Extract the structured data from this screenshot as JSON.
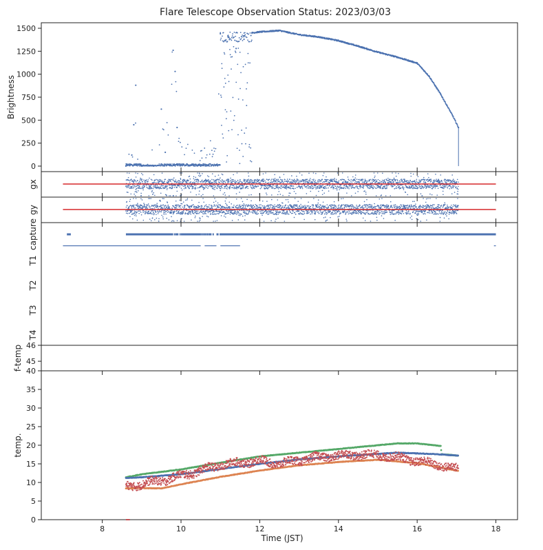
{
  "title": "Flare Telescope Observation Status: 2023/03/03",
  "colors": {
    "blue": "#4c72b0",
    "red": "#d62728",
    "green": "#55a868",
    "orange": "#dd8452",
    "darkred": "#c44e52",
    "axis": "#222222"
  },
  "chart_data": [
    {
      "type": "scatter",
      "id": "brightness",
      "ylabel": "Brightness",
      "yticks": [
        0,
        250,
        500,
        750,
        1000,
        1250,
        1500
      ],
      "ytick_labels": [
        "0",
        "250",
        "500",
        "750",
        "1000",
        "1250",
        "1500"
      ],
      "ylim": [
        -60,
        1560
      ],
      "xlim": [
        6.45,
        18.55
      ],
      "series": [
        {
          "name": "brightness",
          "points": [
            [
              8.6,
              0
            ],
            [
              8.7,
              5
            ],
            [
              8.75,
              120
            ],
            [
              8.8,
              450
            ],
            [
              8.85,
              880
            ],
            [
              8.9,
              20
            ],
            [
              9.0,
              0
            ],
            [
              9.3,
              0
            ],
            [
              9.5,
              620
            ],
            [
              9.6,
              150
            ],
            [
              9.8,
              1260
            ],
            [
              9.85,
              1030
            ],
            [
              9.9,
              420
            ],
            [
              10.0,
              20
            ],
            [
              10.5,
              0
            ],
            [
              10.9,
              10
            ],
            [
              11.0,
              1440
            ],
            [
              11.2,
              1400
            ],
            [
              11.4,
              1280
            ],
            [
              11.6,
              1380
            ],
            [
              11.8,
              1450
            ],
            [
              12.0,
              1460
            ],
            [
              12.5,
              1475
            ],
            [
              13.0,
              1430
            ],
            [
              13.5,
              1405
            ],
            [
              14.0,
              1365
            ],
            [
              14.5,
              1305
            ],
            [
              15.0,
              1240
            ],
            [
              15.5,
              1185
            ],
            [
              16.0,
              1120
            ],
            [
              16.3,
              980
            ],
            [
              16.6,
              780
            ],
            [
              16.9,
              550
            ],
            [
              17.05,
              420
            ]
          ]
        }
      ]
    },
    {
      "type": "scatter",
      "id": "gx",
      "ylabel": "gx",
      "series": [
        {
          "name": "gx",
          "x_range": [
            8.6,
            17.05
          ]
        },
        {
          "name": "gx-reference",
          "line": [
            [
              7.0,
              0
            ],
            [
              18.0,
              0
            ]
          ]
        }
      ]
    },
    {
      "type": "scatter",
      "id": "gy",
      "ylabel": "gy",
      "series": [
        {
          "name": "gy",
          "x_range": [
            8.6,
            17.05
          ]
        },
        {
          "name": "gy-reference",
          "line": [
            [
              7.0,
              0
            ],
            [
              18.0,
              0
            ]
          ]
        }
      ]
    },
    {
      "type": "scatter",
      "id": "status",
      "ylabels": [
        "capture",
        "T1",
        "T2",
        "T3",
        "T4"
      ],
      "series": [
        {
          "name": "capture",
          "segments": [
            [
              7.1,
              7.2
            ],
            [
              8.6,
              9.8
            ],
            [
              10.0,
              10.5
            ],
            [
              11.0,
              18.0
            ]
          ]
        },
        {
          "name": "T1",
          "segments": [
            [
              7.0,
              10.5
            ],
            [
              10.6,
              10.9
            ],
            [
              11.0,
              11.5
            ],
            [
              17.95,
              18.0
            ]
          ]
        }
      ]
    },
    {
      "type": "scatter",
      "id": "f-temp",
      "ylabel": "f-temp",
      "yticks": [
        45,
        46
      ],
      "ytick_labels": [
        "45",
        "46"
      ],
      "ylim": [
        44.4,
        46.0
      ],
      "series": []
    },
    {
      "type": "line",
      "id": "temperature",
      "ylabel": "temp.",
      "xlabel": "Time (JST)",
      "yticks": [
        0,
        5,
        10,
        15,
        20,
        25,
        30,
        35,
        40
      ],
      "ytick_labels": [
        "0",
        "5",
        "10",
        "15",
        "20",
        "25",
        "30",
        "35",
        "40"
      ],
      "ylim": [
        0,
        40
      ],
      "xticks": [
        8,
        10,
        12,
        14,
        16,
        18
      ],
      "xtick_labels": [
        "8",
        "10",
        "12",
        "14",
        "16",
        "18"
      ],
      "series": [
        {
          "name": "temp-green",
          "points": [
            [
              8.6,
              11.4
            ],
            [
              9.0,
              12.2
            ],
            [
              10.0,
              13.5
            ],
            [
              11.0,
              15.3
            ],
            [
              12.0,
              17.0
            ],
            [
              13.0,
              18.0
            ],
            [
              14.0,
              19.0
            ],
            [
              15.0,
              20.0
            ],
            [
              15.5,
              20.5
            ],
            [
              16.0,
              20.5
            ],
            [
              16.6,
              19.8
            ],
            [
              16.62,
              17.6
            ],
            [
              17.05,
              17.2
            ]
          ]
        },
        {
          "name": "temp-blue",
          "points": [
            [
              8.6,
              11.2
            ],
            [
              9.0,
              11.4
            ],
            [
              10.0,
              12.2
            ],
            [
              11.0,
              13.6
            ],
            [
              12.0,
              15.0
            ],
            [
              13.0,
              16.2
            ],
            [
              14.0,
              17.0
            ],
            [
              15.0,
              17.7
            ],
            [
              15.5,
              18.0
            ],
            [
              16.0,
              17.8
            ],
            [
              16.5,
              17.6
            ],
            [
              17.05,
              17.2
            ]
          ]
        },
        {
          "name": "temp-orange",
          "points": [
            [
              8.6,
              8.4
            ],
            [
              9.0,
              8.5
            ],
            [
              9.5,
              8.4
            ],
            [
              10.0,
              9.5
            ],
            [
              11.0,
              11.5
            ],
            [
              12.0,
              13.2
            ],
            [
              13.0,
              14.6
            ],
            [
              14.0,
              15.5
            ],
            [
              15.0,
              16.1
            ],
            [
              16.0,
              15.2
            ],
            [
              16.5,
              14.2
            ],
            [
              17.05,
              13.1
            ]
          ]
        },
        {
          "name": "temp-red",
          "points": [
            [
              8.6,
              8.8
            ],
            [
              9.0,
              9.6
            ],
            [
              9.5,
              10.5
            ],
            [
              10.0,
              11.8
            ],
            [
              10.5,
              13.2
            ],
            [
              11.0,
              14.7
            ],
            [
              11.5,
              15.3
            ],
            [
              12.0,
              15.8
            ],
            [
              12.5,
              15.0
            ],
            [
              13.0,
              16.0
            ],
            [
              13.5,
              16.8
            ],
            [
              14.0,
              17.2
            ],
            [
              14.5,
              17.5
            ],
            [
              15.0,
              17.3
            ],
            [
              15.5,
              16.7
            ],
            [
              16.0,
              15.8
            ],
            [
              16.5,
              14.8
            ],
            [
              17.05,
              13.5
            ]
          ]
        },
        {
          "name": "temp-offset-mark",
          "points": [
            [
              8.6,
              0
            ],
            [
              8.7,
              0
            ]
          ]
        }
      ]
    }
  ]
}
